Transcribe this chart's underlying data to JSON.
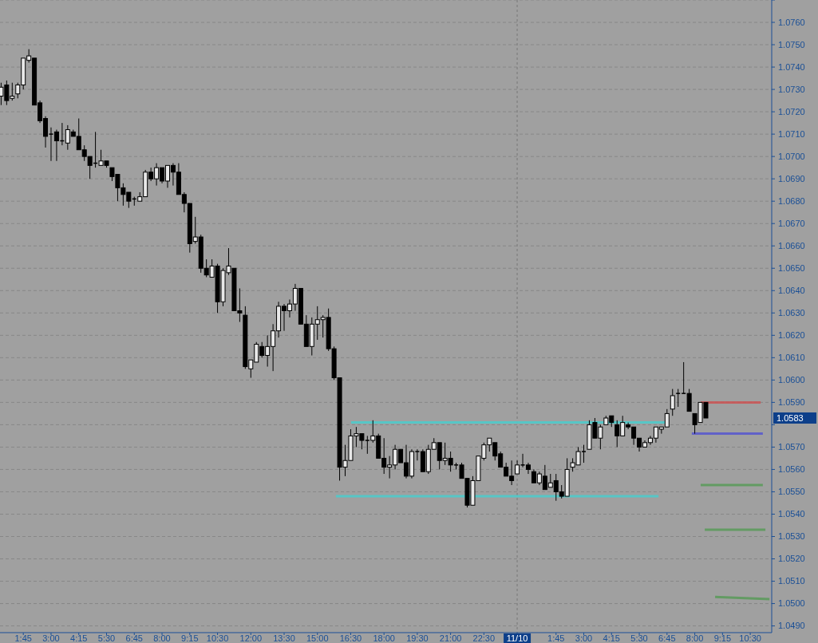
{
  "chart_data": {
    "type": "candlestick",
    "x": [
      "--11-09T00:45",
      "--11-09T01:00",
      "--11-09T01:15",
      "--11-09T01:30",
      "--11-09T01:45",
      "--11-09T02:00",
      "--11-09T02:15",
      "--11-09T02:30",
      "--11-09T02:45",
      "--11-09T03:00",
      "--11-09T03:15",
      "--11-09T03:30",
      "--11-09T03:45",
      "--11-09T04:00",
      "--11-09T04:15",
      "--11-09T04:30",
      "--11-09T04:45",
      "--11-09T05:00",
      "--11-09T05:15",
      "--11-09T05:30",
      "--11-09T05:45",
      "--11-09T06:00",
      "--11-09T06:15",
      "--11-09T06:30",
      "--11-09T06:45",
      "--11-09T07:00",
      "--11-09T07:15",
      "--11-09T07:30",
      "--11-09T07:45",
      "--11-09T08:00",
      "--11-09T08:15",
      "--11-09T08:30",
      "--11-09T08:45",
      "--11-09T09:00",
      "--11-09T09:15",
      "--11-09T09:30",
      "--11-09T09:45",
      "--11-09T10:00",
      "--11-09T10:15",
      "--11-09T10:30",
      "--11-09T10:45",
      "--11-09T11:00",
      "--11-09T11:15",
      "--11-09T11:30",
      "--11-09T11:45",
      "--11-09T12:00",
      "--11-09T12:15",
      "--11-09T12:30",
      "--11-09T12:45",
      "--11-09T13:00",
      "--11-09T13:15",
      "--11-09T13:30",
      "--11-09T13:45",
      "--11-09T14:00",
      "--11-09T14:15",
      "--11-09T14:30",
      "--11-09T14:45",
      "--11-09T15:00",
      "--11-09T15:15",
      "--11-09T15:30",
      "--11-09T15:45",
      "--11-09T16:00",
      "--11-09T16:15",
      "--11-09T16:30",
      "--11-09T16:45",
      "--11-09T17:00",
      "--11-09T17:15",
      "--11-09T17:30",
      "--11-09T17:45",
      "--11-09T18:00",
      "--11-09T18:15",
      "--11-09T18:30",
      "--11-09T18:45",
      "--11-09T19:00",
      "--11-09T19:15",
      "--11-09T19:30",
      "--11-09T19:45",
      "--11-09T20:00",
      "--11-09T20:15",
      "--11-09T20:30",
      "--11-09T20:45",
      "--11-09T21:00",
      "--11-09T21:15",
      "--11-09T21:30",
      "--11-09T21:45",
      "--11-09T22:00",
      "--11-09T22:15",
      "--11-09T22:30",
      "--11-09T22:45",
      "--11-09T23:00",
      "--11-09T23:15",
      "--11-09T23:30",
      "--11-09T23:45",
      "--11-10T00:00",
      "--11-10T00:15",
      "--11-10T00:30",
      "--11-10T00:45",
      "--11-10T01:00",
      "--11-10T01:15",
      "--11-10T01:30",
      "--11-10T01:45",
      "--11-10T02:00",
      "--11-10T02:15",
      "--11-10T02:30",
      "--11-10T02:45",
      "--11-10T03:00",
      "--11-10T03:15",
      "--11-10T03:30",
      "--11-10T03:45",
      "--11-10T04:00",
      "--11-10T04:15",
      "--11-10T04:30",
      "--11-10T04:45",
      "--11-10T05:00",
      "--11-10T05:15",
      "--11-10T05:30",
      "--11-10T05:45",
      "--11-10T06:00",
      "--11-10T06:15",
      "--11-10T06:30",
      "--11-10T06:45",
      "--11-10T07:00",
      "--11-10T07:15",
      "--11-10T07:30",
      "--11-10T07:45",
      "--11-10T08:00",
      "--11-10T08:15",
      "--11-10T08:30"
    ],
    "ohlc": [
      [
        1.0727,
        1.0733,
        1.0723,
        1.0731
      ],
      [
        1.0732,
        1.0734,
        1.0723,
        1.0725
      ],
      [
        1.0726,
        1.0733,
        1.0725,
        1.0727
      ],
      [
        1.0728,
        1.0733,
        1.0726,
        1.0732
      ],
      [
        1.0732,
        1.0744,
        1.073,
        1.0744
      ],
      [
        1.0743,
        1.0748,
        1.0742,
        1.0745
      ],
      [
        1.0744,
        1.0744,
        1.0723,
        1.0723
      ],
      [
        1.0724,
        1.0725,
        1.0715,
        1.0716
      ],
      [
        1.0717,
        1.0718,
        1.0704,
        1.0709
      ],
      [
        1.071,
        1.0713,
        1.0698,
        1.071
      ],
      [
        1.0711,
        1.0712,
        1.0698,
        1.0707
      ],
      [
        1.0707,
        1.0715,
        1.0705,
        1.0707
      ],
      [
        1.0706,
        1.0714,
        1.0703,
        1.0712
      ],
      [
        1.0711,
        1.0712,
        1.0709,
        1.0709
      ],
      [
        1.0709,
        1.0717,
        1.0703,
        1.0703
      ],
      [
        1.0703,
        1.0705,
        1.0698,
        1.07
      ],
      [
        1.07,
        1.07,
        1.069,
        1.0696
      ],
      [
        1.0697,
        1.0711,
        1.0695,
        1.0697
      ],
      [
        1.0696,
        1.0703,
        1.0696,
        1.0698
      ],
      [
        1.0698,
        1.0698,
        1.0695,
        1.0696
      ],
      [
        1.0695,
        1.0695,
        1.0689,
        1.0691
      ],
      [
        1.0692,
        1.0692,
        1.068,
        1.0686
      ],
      [
        1.0686,
        1.0688,
        1.0678,
        1.0683
      ],
      [
        1.0684,
        1.0684,
        1.0677,
        1.068
      ],
      [
        1.0681,
        1.0682,
        1.0678,
        1.0681
      ],
      [
        1.068,
        1.0684,
        1.068,
        1.0682
      ],
      [
        1.0682,
        1.0694,
        1.0682,
        1.0693
      ],
      [
        1.0693,
        1.0695,
        1.0689,
        1.069
      ],
      [
        1.069,
        1.0697,
        1.0687,
        1.0695
      ],
      [
        1.0695,
        1.0695,
        1.0688,
        1.0689
      ],
      [
        1.0689,
        1.0696,
        1.0686,
        1.0696
      ],
      [
        1.0696,
        1.0697,
        1.0687,
        1.0693
      ],
      [
        1.0693,
        1.0697,
        1.0683,
        1.0683
      ],
      [
        1.0683,
        1.0684,
        1.0675,
        1.0679
      ],
      [
        1.0679,
        1.0679,
        1.0657,
        1.0661
      ],
      [
        1.0662,
        1.0673,
        1.0661,
        1.0664
      ],
      [
        1.0664,
        1.0665,
        1.0648,
        1.065
      ],
      [
        1.065,
        1.0654,
        1.0646,
        1.0647
      ],
      [
        1.0646,
        1.0654,
        1.0646,
        1.0651
      ],
      [
        1.0651,
        1.0652,
        1.063,
        1.0635
      ],
      [
        1.0635,
        1.065,
        1.0633,
        1.0649
      ],
      [
        1.0648,
        1.0659,
        1.0647,
        1.0651
      ],
      [
        1.065,
        1.065,
        1.0631,
        1.0631
      ],
      [
        1.0631,
        1.0641,
        1.0626,
        1.063
      ],
      [
        1.0629,
        1.0633,
        1.0605,
        1.0606
      ],
      [
        1.0605,
        1.0609,
        1.0601,
        1.0609
      ],
      [
        1.0608,
        1.0617,
        1.0608,
        1.0616
      ],
      [
        1.0615,
        1.0617,
        1.061,
        1.0611
      ],
      [
        1.0611,
        1.062,
        1.0606,
        1.0615
      ],
      [
        1.0615,
        1.0625,
        1.0604,
        1.0622
      ],
      [
        1.0622,
        1.0635,
        1.0619,
        1.0633
      ],
      [
        1.0633,
        1.0634,
        1.0622,
        1.0631
      ],
      [
        1.0631,
        1.0636,
        1.0628,
        1.0634
      ],
      [
        1.0634,
        1.0643,
        1.0631,
        1.0641
      ],
      [
        1.0641,
        1.0641,
        1.0625,
        1.0625
      ],
      [
        1.0625,
        1.0629,
        1.0615,
        1.0615
      ],
      [
        1.0615,
        1.0628,
        1.0611,
        1.0625
      ],
      [
        1.0625,
        1.0633,
        1.0618,
        1.0627
      ],
      [
        1.0627,
        1.0629,
        1.0619,
        1.0628
      ],
      [
        1.0628,
        1.0632,
        1.0613,
        1.0614
      ],
      [
        1.0614,
        1.0615,
        1.06,
        1.0601
      ],
      [
        1.0601,
        1.0601,
        1.0555,
        1.0561
      ],
      [
        1.0561,
        1.0571,
        1.0557,
        1.0564
      ],
      [
        1.0564,
        1.0578,
        1.0564,
        1.0575
      ],
      [
        1.0575,
        1.0579,
        1.057,
        1.0576
      ],
      [
        1.0576,
        1.0576,
        1.0569,
        1.0573
      ],
      [
        1.0573,
        1.0575,
        1.0567,
        1.0573
      ],
      [
        1.0573,
        1.0582,
        1.0572,
        1.0575
      ],
      [
        1.0575,
        1.0576,
        1.0565,
        1.0565
      ],
      [
        1.0565,
        1.0574,
        1.0558,
        1.0561
      ],
      [
        1.0561,
        1.0566,
        1.0556,
        1.0562
      ],
      [
        1.0562,
        1.0571,
        1.056,
        1.0569
      ],
      [
        1.0569,
        1.0569,
        1.0563,
        1.0563
      ],
      [
        1.0563,
        1.0571,
        1.0556,
        1.0557
      ],
      [
        1.0557,
        1.0569,
        1.0556,
        1.0568
      ],
      [
        1.0568,
        1.0569,
        1.0564,
        1.0568
      ],
      [
        1.0568,
        1.0569,
        1.0559,
        1.0559
      ],
      [
        1.0559,
        1.0571,
        1.0558,
        1.0569
      ],
      [
        1.0569,
        1.0574,
        1.0569,
        1.0572
      ],
      [
        1.0572,
        1.0572,
        1.056,
        1.0564
      ],
      [
        1.0564,
        1.0572,
        1.0562,
        1.0565
      ],
      [
        1.0565,
        1.0568,
        1.0559,
        1.0562
      ],
      [
        1.0562,
        1.0563,
        1.056,
        1.0562
      ],
      [
        1.0562,
        1.0563,
        1.0556,
        1.0556
      ],
      [
        1.0556,
        1.0556,
        1.0543,
        1.0544
      ],
      [
        1.0544,
        1.0557,
        1.0544,
        1.0555
      ],
      [
        1.0555,
        1.0566,
        1.0555,
        1.0566
      ],
      [
        1.0565,
        1.0572,
        1.0564,
        1.0571
      ],
      [
        1.0571,
        1.0574,
        1.0568,
        1.0574
      ],
      [
        1.0572,
        1.0572,
        1.0564,
        1.0566
      ],
      [
        1.0567,
        1.0568,
        1.0561,
        1.0561
      ],
      [
        1.0561,
        1.0563,
        1.0557,
        1.0557
      ],
      [
        1.0557,
        1.0564,
        1.0553,
        1.0555
      ],
      [
        1.0558,
        1.0564,
        1.0558,
        1.0562
      ],
      [
        1.0562,
        1.0567,
        1.0561,
        1.0562
      ],
      [
        1.0562,
        1.0563,
        1.0558,
        1.056
      ],
      [
        1.0559,
        1.056,
        1.0554,
        1.0554
      ],
      [
        1.0554,
        1.0559,
        1.0553,
        1.0558
      ],
      [
        1.0557,
        1.0562,
        1.0551,
        1.0551
      ],
      [
        1.0552,
        1.0558,
        1.0552,
        1.0554
      ],
      [
        1.0555,
        1.0558,
        1.0546,
        1.055
      ],
      [
        1.055,
        1.0553,
        1.0547,
        1.0548
      ],
      [
        1.0548,
        1.0565,
        1.0548,
        1.056
      ],
      [
        1.0561,
        1.0565,
        1.0559,
        1.0563
      ],
      [
        1.0562,
        1.057,
        1.0562,
        1.0568
      ],
      [
        1.0568,
        1.0571,
        1.0563,
        1.0568
      ],
      [
        1.0569,
        1.0582,
        1.0569,
        1.058
      ],
      [
        1.0581,
        1.0583,
        1.0574,
        1.0574
      ],
      [
        1.0574,
        1.058,
        1.0569,
        1.0579
      ],
      [
        1.058,
        1.0584,
        1.058,
        1.0583
      ],
      [
        1.0584,
        1.0584,
        1.0579,
        1.0581
      ],
      [
        1.058,
        1.0582,
        1.057,
        1.0575
      ],
      [
        1.0575,
        1.0584,
        1.0575,
        1.0581
      ],
      [
        1.058,
        1.0581,
        1.0578,
        1.0579
      ],
      [
        1.0579,
        1.0579,
        1.0571,
        1.0574
      ],
      [
        1.0574,
        1.0574,
        1.0568,
        1.057
      ],
      [
        1.057,
        1.0573,
        1.057,
        1.0572
      ],
      [
        1.0572,
        1.0575,
        1.0571,
        1.0574
      ],
      [
        1.0574,
        1.0579,
        1.0572,
        1.0579
      ],
      [
        1.0578,
        1.0579,
        1.0576,
        1.0579
      ],
      [
        1.0579,
        1.0587,
        1.0579,
        1.0585
      ],
      [
        1.0587,
        1.0596,
        1.0584,
        1.0593
      ],
      [
        1.0594,
        1.0596,
        1.0588,
        1.0594
      ],
      [
        1.0594,
        1.0608,
        1.0594,
        1.0594
      ],
      [
        1.0594,
        1.0596,
        1.0586,
        1.0586
      ],
      [
        1.0585,
        1.0585,
        1.0576,
        1.058
      ],
      [
        1.0581,
        1.059,
        1.0581,
        1.059
      ],
      [
        1.059,
        1.059,
        1.0583,
        1.0583
      ]
    ],
    "series": [
      {
        "type": "line",
        "color": "#4fcaca",
        "x": [
          "--11-09T16:31",
          "--11-10T06:39"
        ],
        "values": [
          1.0581,
          1.0581
        ]
      },
      {
        "type": "line",
        "color": "#4fcaca",
        "x": [
          "--11-09T15:50",
          "--11-10T06:22"
        ],
        "values": [
          1.0548,
          1.0548
        ]
      },
      {
        "type": "line",
        "color": "#c85858",
        "x": [
          "--11-10T08:16",
          "--11-10T10:58"
        ],
        "values": [
          1.059,
          1.059
        ]
      },
      {
        "type": "line",
        "color": "#5a5acc",
        "x": [
          "--11-10T07:52",
          "--11-10T11:04"
        ],
        "values": [
          1.0576,
          1.0576
        ]
      },
      {
        "type": "line",
        "color": "#5c9a5c",
        "x": [
          "--11-10T08:16",
          "--11-10T11:04"
        ],
        "values": [
          1.0553,
          1.0553
        ]
      },
      {
        "type": "line",
        "color": "#5c9a5c",
        "x": [
          "--11-10T08:27",
          "--11-10T11:11"
        ],
        "values": [
          1.0533,
          1.0533
        ]
      },
      {
        "type": "line",
        "color": "#5c9a5c",
        "x": [
          "--11-10T08:55",
          "--11-10T11:22"
        ],
        "values": [
          1.0503,
          1.0502
        ]
      }
    ],
    "xlim": [
      "--11-09T00:42",
      "--11-10T11:28"
    ],
    "xticks": [
      {
        "value": "--11-09T01:45",
        "label": "1:45"
      },
      {
        "value": "--11-09T03:00",
        "label": "3:00"
      },
      {
        "value": "--11-09T04:15",
        "label": "4:15"
      },
      {
        "value": "--11-09T05:30",
        "label": "5:30"
      },
      {
        "value": "--11-09T06:45",
        "label": "6:45"
      },
      {
        "value": "--11-09T08:00",
        "label": "8:00"
      },
      {
        "value": "--11-09T09:15",
        "label": "9:15"
      },
      {
        "value": "--11-09T10:30",
        "label": "10:30"
      },
      {
        "value": "--11-09T12:00",
        "label": "12:00"
      },
      {
        "value": "--11-09T13:30",
        "label": "13:30"
      },
      {
        "value": "--11-09T15:00",
        "label": "15:00"
      },
      {
        "value": "--11-09T16:30",
        "label": "16:30"
      },
      {
        "value": "--11-09T18:00",
        "label": "18:00"
      },
      {
        "value": "--11-09T19:30",
        "label": "19:30"
      },
      {
        "value": "--11-09T21:00",
        "label": "21:00"
      },
      {
        "value": "--11-09T22:30",
        "label": "22:30"
      },
      {
        "value": "--11-10",
        "label": "11/10"
      },
      {
        "value": "--11-10T01:45",
        "label": "1:45"
      },
      {
        "value": "--11-10T03:00",
        "label": "3:00"
      },
      {
        "value": "--11-10T04:15",
        "label": "4:15"
      },
      {
        "value": "--11-10T05:30",
        "label": "5:30"
      },
      {
        "value": "--11-10T06:45",
        "label": "6:45"
      },
      {
        "value": "--11-10T08:00",
        "label": "8:00"
      },
      {
        "value": "--11-10T09:15",
        "label": "9:15"
      },
      {
        "value": "--11-10T10:30",
        "label": "10:30"
      }
    ],
    "ylim": [
      1.0487,
      1.077
    ],
    "yticks": [
      {
        "value": 1.049,
        "label": "1.0490"
      },
      {
        "value": 1.05,
        "label": "1.0500"
      },
      {
        "value": 1.051,
        "label": "1.0510"
      },
      {
        "value": 1.052,
        "label": "1.0520"
      },
      {
        "value": 1.053,
        "label": "1.0530"
      },
      {
        "value": 1.054,
        "label": "1.0540"
      },
      {
        "value": 1.055,
        "label": "1.0550"
      },
      {
        "value": 1.056,
        "label": "1.0560"
      },
      {
        "value": 1.057,
        "label": "1.0570"
      },
      {
        "value": 1.058,
        "label": null
      },
      {
        "value": 1.059,
        "label": "1.0590"
      },
      {
        "value": 1.06,
        "label": "1.0600"
      },
      {
        "value": 1.061,
        "label": "1.0610"
      },
      {
        "value": 1.062,
        "label": "1.0620"
      },
      {
        "value": 1.063,
        "label": "1.0630"
      },
      {
        "value": 1.064,
        "label": "1.0640"
      },
      {
        "value": 1.065,
        "label": "1.0650"
      },
      {
        "value": 1.066,
        "label": "1.0660"
      },
      {
        "value": 1.067,
        "label": "1.0670"
      },
      {
        "value": 1.068,
        "label": "1.0680"
      },
      {
        "value": 1.069,
        "label": "1.0690"
      },
      {
        "value": 1.07,
        "label": "1.0700"
      },
      {
        "value": 1.071,
        "label": "1.0710"
      },
      {
        "value": 1.072,
        "label": "1.0720"
      },
      {
        "value": 1.073,
        "label": "1.0730"
      },
      {
        "value": 1.074,
        "label": "1.0740"
      },
      {
        "value": 1.075,
        "label": "1.0750"
      },
      {
        "value": 1.076,
        "label": "1.0760"
      },
      {
        "value": 1.077,
        "label": null
      }
    ],
    "grid": "y",
    "ref_lines": [
      {
        "axis": "x",
        "value": "--11-10",
        "line_style": "dashed"
      }
    ],
    "annotations": [
      "1.0583"
    ]
  }
}
